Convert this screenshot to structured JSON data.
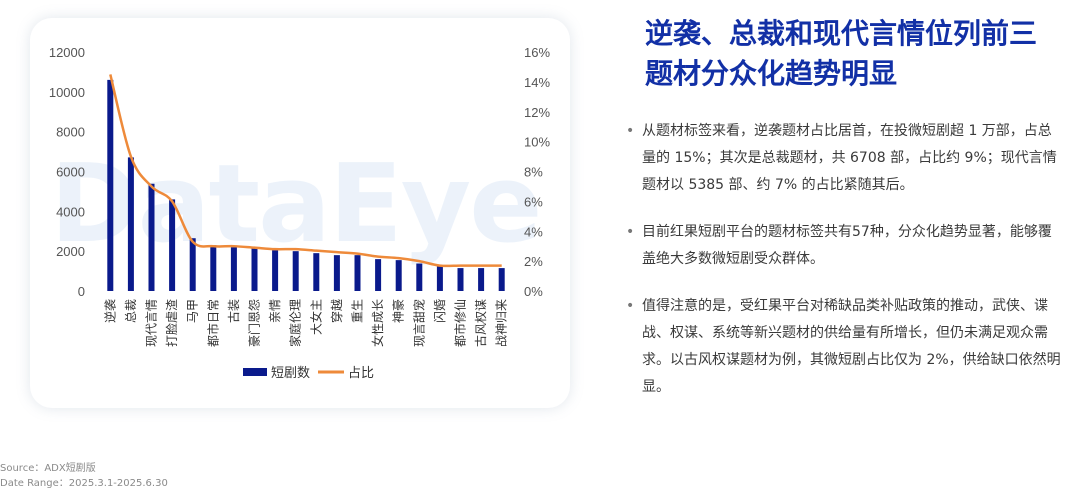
{
  "title_line1": "逆袭、总裁和现代言情位列前三",
  "title_line2": "题材分众化趋势明显",
  "bullets": [
    "从题材标签来看，逆袭题材占比居首，在投微短剧超 1 万部，占总量的 15%；其次是总裁题材，共 6708 部，占比约 9%；现代言情题材以 5385 部、约 7% 的占比紧随其后。",
    "目前红果短剧平台的题材标签共有57种，分众化趋势显著，能够覆盖绝大多数微短剧受众群体。",
    "值得注意的是，受红果平台对稀缺品类补贴政策的推动，武侠、谍战、权谋、系统等新兴题材的供给量有所增长，但仍未满足观众需求。以古风权谋题材为例，其微短剧占比仅为 2%，供给缺口依然明显。"
  ],
  "watermark": "DataEye",
  "source": "Source：ADX短剧版",
  "date_range": "Date Range：2025.3.1-2025.6.30",
  "bullet_glyph": "•",
  "chart_data": {
    "type": "bar+line",
    "categories": [
      "逆袭",
      "总裁",
      "现代言情",
      "打脸虐渣",
      "马甲",
      "都市日常",
      "古装",
      "豪门恩怨",
      "亲情",
      "家庭伦理",
      "大女主",
      "穿越",
      "重生",
      "女性成长",
      "神豪",
      "现言甜宠",
      "闪婚",
      "都市修仙",
      "古风权谋",
      "战神归来"
    ],
    "series": [
      {
        "name": "短剧数",
        "axis": "left",
        "color": "#0a1a8c",
        "values": [
          10600,
          6708,
          5385,
          4600,
          2650,
          2300,
          2200,
          2150,
          2050,
          2000,
          1900,
          1800,
          1800,
          1600,
          1550,
          1380,
          1250,
          1150,
          1150,
          1150
        ]
      },
      {
        "name": "占比",
        "axis": "right",
        "color": "#ee8a3a",
        "values": [
          14.5,
          9,
          7,
          6,
          3.3,
          3,
          3,
          2.9,
          2.8,
          2.8,
          2.7,
          2.6,
          2.5,
          2.3,
          2.2,
          2,
          1.7,
          1.7,
          1.7,
          1.7
        ]
      }
    ],
    "y_left": {
      "min": 0,
      "max": 12000,
      "ticks": [
        "0",
        "2000",
        "4000",
        "6000",
        "8000",
        "10000",
        "12000"
      ]
    },
    "y_right": {
      "min": 0,
      "max": 16,
      "ticks": [
        "0%",
        "2%",
        "4%",
        "6%",
        "8%",
        "10%",
        "12%",
        "14%",
        "16%"
      ]
    },
    "legend_position": "bottom",
    "grid": false
  }
}
